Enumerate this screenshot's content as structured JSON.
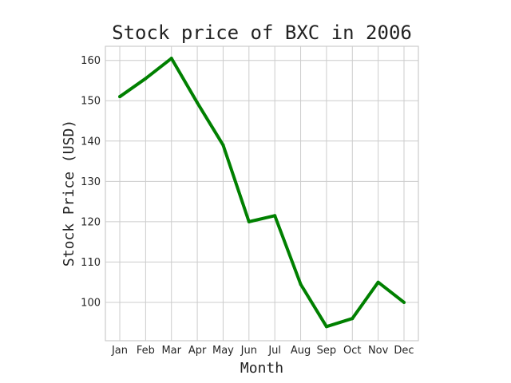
{
  "chart_data": {
    "type": "line",
    "title": "Stock price of BXC in 2006",
    "xlabel": "Month",
    "ylabel": "Stock Price (USD)",
    "categories": [
      "Jan",
      "Feb",
      "Mar",
      "Apr",
      "May",
      "Jun",
      "Jul",
      "Aug",
      "Sep",
      "Oct",
      "Nov",
      "Dec"
    ],
    "series": [
      {
        "values": [
          151,
          155.5,
          160.5,
          149.5,
          139,
          120,
          121.5,
          104.5,
          94,
          96,
          105,
          100
        ],
        "color": "#008000"
      }
    ],
    "ylim": [
      90.5,
      163.5
    ],
    "yticks": [
      100,
      110,
      120,
      130,
      140,
      150,
      160
    ],
    "grid": true,
    "legend": "none"
  }
}
